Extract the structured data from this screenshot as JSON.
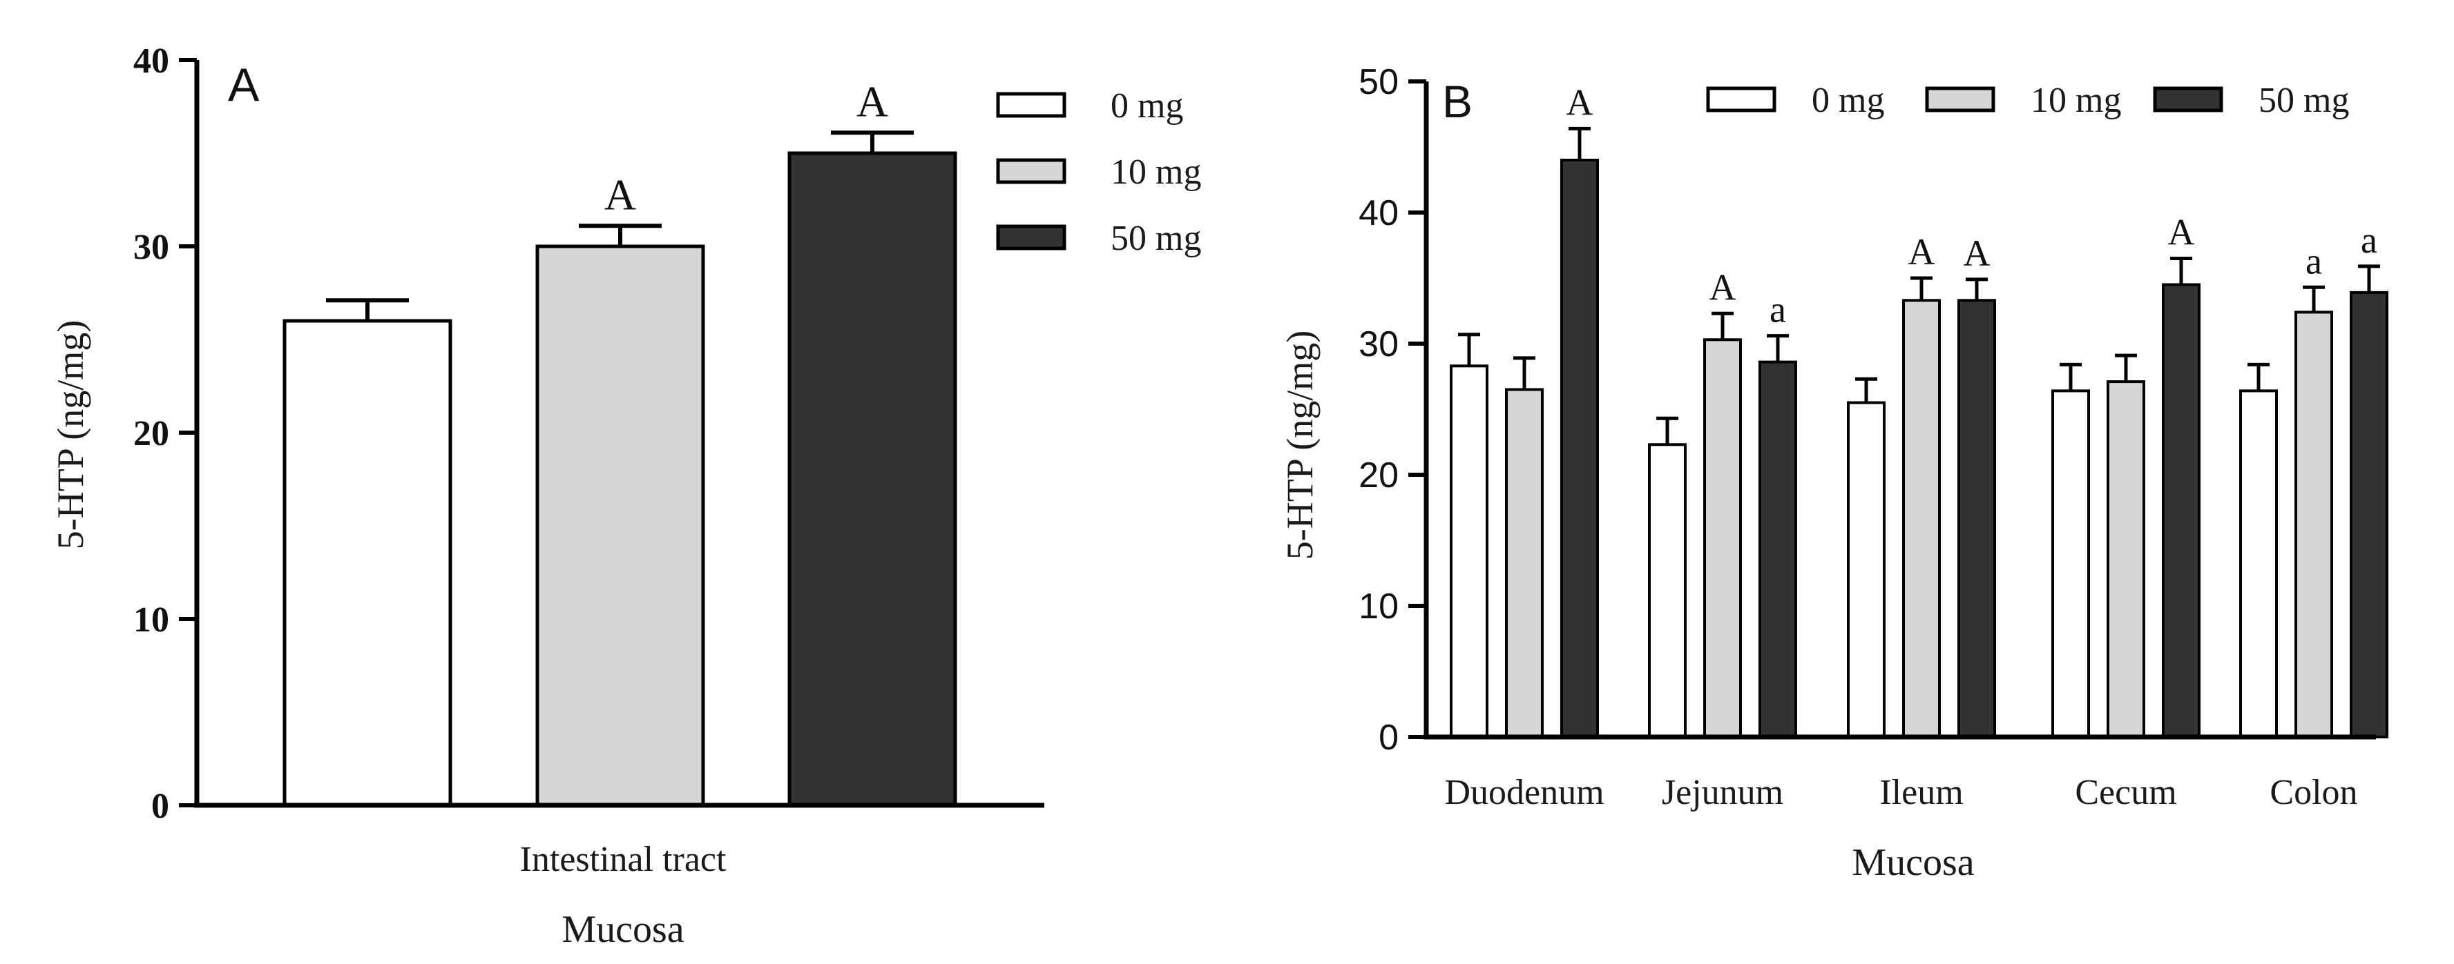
{
  "colors": {
    "axis": "#000000",
    "series_0mg": "#ffffff",
    "series_10mg": "#d6d6d6",
    "series_50mg": "#333333",
    "bar_stroke": "#000000",
    "text": "#1a1a1a"
  },
  "chart_data": [
    {
      "panel_label": "A",
      "type": "bar",
      "title": "",
      "xlabel": "Mucosa",
      "ylabel": "5-HTP (ng/mg)",
      "ylim": [
        0,
        40
      ],
      "yticks": [
        0,
        10,
        20,
        30,
        40
      ],
      "ytick_labels": [
        "0",
        "10",
        "20",
        "30",
        "40"
      ],
      "categories": [
        "Intestinal tract"
      ],
      "legend_placement": "top-right",
      "series": [
        {
          "name": "0 mg",
          "values": [
            26.0
          ],
          "errors": [
            1.1
          ],
          "annotations": [
            ""
          ]
        },
        {
          "name": "10 mg",
          "values": [
            30.0
          ],
          "errors": [
            1.1
          ],
          "annotations": [
            "A"
          ]
        },
        {
          "name": "50 mg",
          "values": [
            35.0
          ],
          "errors": [
            1.1
          ],
          "annotations": [
            "A"
          ]
        }
      ]
    },
    {
      "panel_label": "B",
      "type": "bar",
      "title": "",
      "xlabel": "Mucosa",
      "ylabel": "5-HTP (ng/mg)",
      "ylim": [
        0,
        50
      ],
      "yticks": [
        0,
        10,
        20,
        30,
        40,
        50
      ],
      "ytick_labels": [
        "0",
        "10",
        "20",
        "30",
        "40",
        "50"
      ],
      "categories": [
        "Duodenum",
        "Jejunum",
        "Ileum",
        "Cecum",
        "Colon"
      ],
      "legend_placement": "top",
      "series": [
        {
          "name": "0 mg",
          "values": [
            28.3,
            22.3,
            25.5,
            26.4,
            26.4
          ],
          "errors": [
            2.4,
            2.0,
            1.8,
            2.0,
            2.0
          ],
          "annotations": [
            "",
            "",
            "",
            "",
            ""
          ]
        },
        {
          "name": "10 mg",
          "values": [
            26.5,
            30.3,
            33.3,
            27.1,
            32.4
          ],
          "errors": [
            2.4,
            2.0,
            1.7,
            2.0,
            1.9
          ],
          "annotations": [
            "",
            "A",
            "A",
            "",
            "a"
          ]
        },
        {
          "name": "50 mg",
          "values": [
            44.0,
            28.6,
            33.3,
            34.5,
            33.9
          ],
          "errors": [
            2.4,
            2.0,
            1.6,
            2.0,
            2.0
          ],
          "annotations": [
            "A",
            "a",
            "A",
            "A",
            "a"
          ]
        }
      ]
    }
  ]
}
